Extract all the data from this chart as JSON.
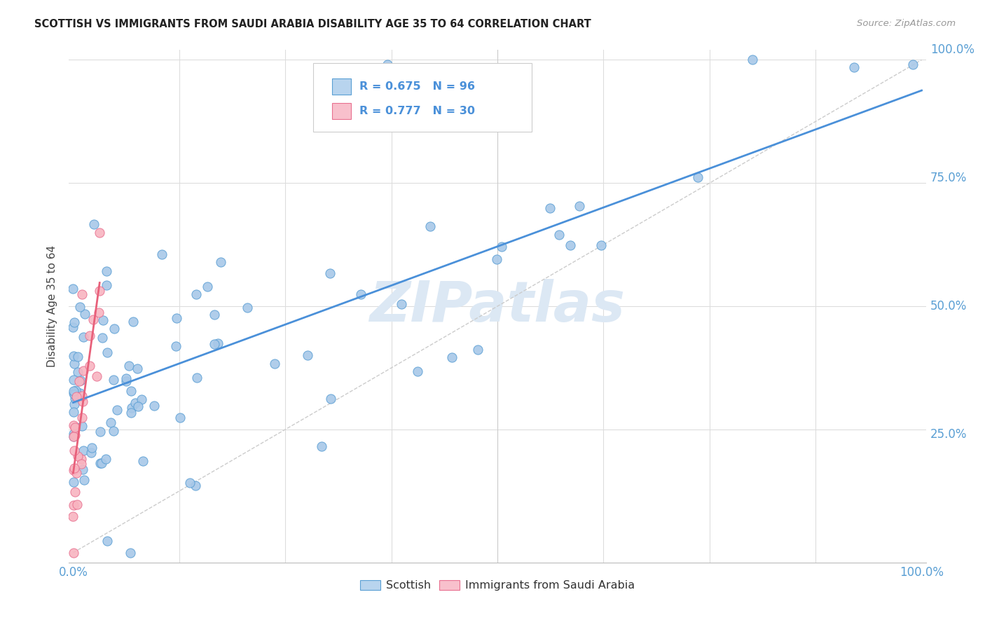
{
  "title": "SCOTTISH VS IMMIGRANTS FROM SAUDI ARABIA DISABILITY AGE 35 TO 64 CORRELATION CHART",
  "source": "Source: ZipAtlas.com",
  "ylabel": "Disability Age 35 to 64",
  "r_scottish": 0.675,
  "n_scottish": 96,
  "r_saudi": 0.777,
  "n_saudi": 30,
  "scatter_color_scottish": "#a8c8e8",
  "scatter_edge_scottish": "#5a9fd4",
  "scatter_color_saudi": "#f8b4c0",
  "scatter_edge_saudi": "#e87090",
  "line_color_scottish": "#4a90d9",
  "line_color_saudi": "#e8607a",
  "legend_fill_scottish": "#b8d4ee",
  "legend_fill_saudi": "#f8c0cc",
  "watermark": "ZIPatlas",
  "watermark_color": "#dce8f4",
  "diag_color": "#cccccc"
}
